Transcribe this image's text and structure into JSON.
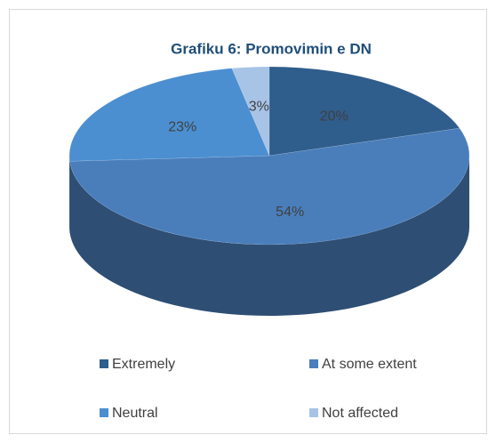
{
  "chart_data": {
    "type": "pie",
    "title": "Grafiku 6: Promovimin e DN",
    "categories": [
      "Extremely",
      "At some extent",
      "Neutral",
      "Not affected"
    ],
    "values": [
      20,
      54,
      23,
      3
    ],
    "value_labels": [
      "20%",
      "54%",
      "23%",
      "3%"
    ],
    "colors": [
      "#2f5d8c",
      "#4a7ebb",
      "#4b8fd1",
      "#a7c3e6"
    ],
    "legend": "bottom",
    "three_d": true
  }
}
